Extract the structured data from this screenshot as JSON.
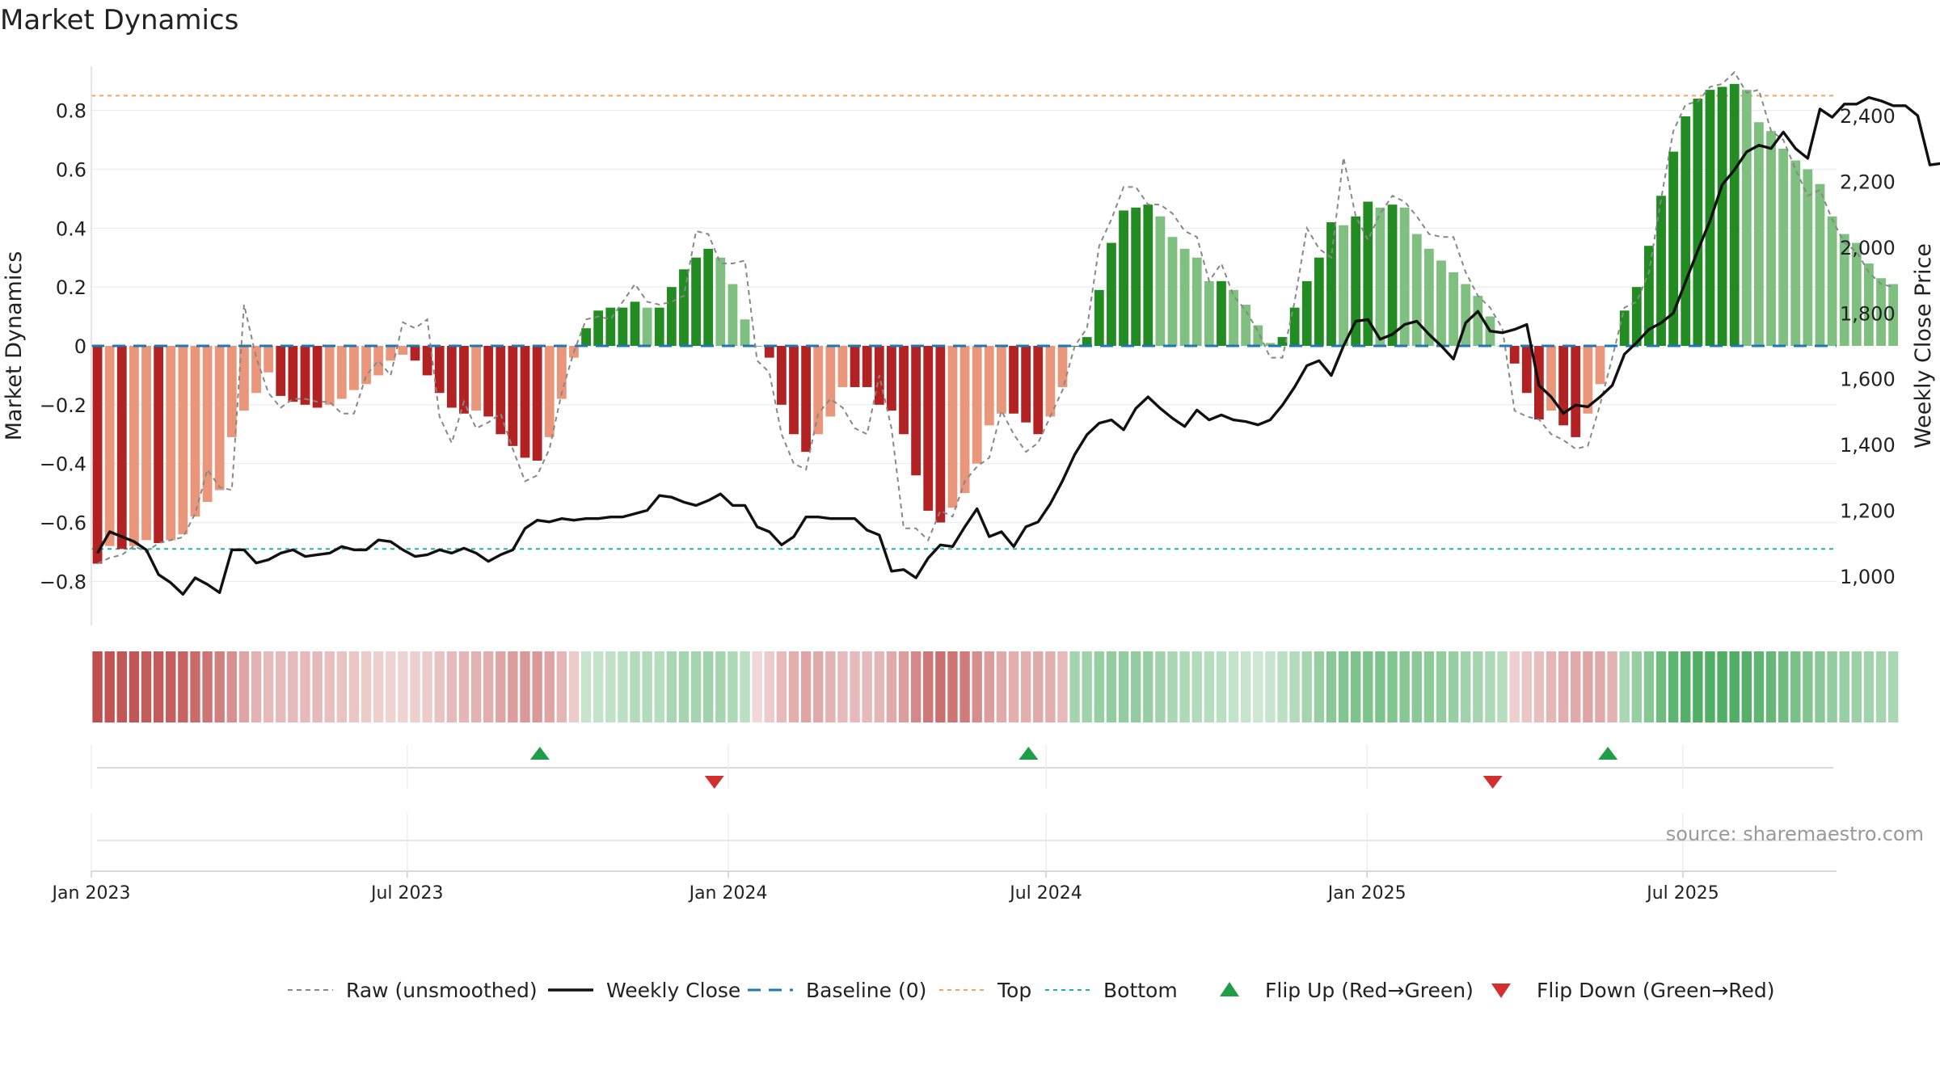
{
  "chart_data": {
    "type": "bar",
    "title": "Market Dynamics",
    "ylabel_left": "Market Dynamics",
    "ylabel_right": "Weekly Close Price",
    "source_note": "source: sharemaestro.com",
    "x_start": "2023-01-01",
    "x_end": "2025-09-27",
    "week_interval_days": 7,
    "ylim_left": [
      -0.95,
      0.95
    ],
    "ylim_right": [
      850,
      2550
    ],
    "y_ticks_left": [
      -0.8,
      -0.6,
      -0.4,
      -0.2,
      0,
      0.2,
      0.4,
      0.6,
      0.8
    ],
    "y_tick_labels_left": [
      "−0.8",
      "−0.6",
      "−0.4",
      "−0.2",
      "0",
      "0.2",
      "0.4",
      "0.6",
      "0.8"
    ],
    "y_ticks_right": [
      1000,
      1200,
      1400,
      1600,
      1800,
      2000,
      2200,
      2400
    ],
    "y_tick_labels_right": [
      "1,000",
      "1,200",
      "1,400",
      "1,600",
      "1,800",
      "2,000",
      "2,200",
      "2,400"
    ],
    "x_tick_dates": [
      "2023-01-01",
      "2023-07-01",
      "2024-01-01",
      "2024-07-01",
      "2025-01-01",
      "2025-07-01"
    ],
    "x_tick_labels": [
      "Jan 2023",
      "Jul 2023",
      "Jan 2024",
      "Jul 2024",
      "Jan 2025",
      "Jul 2025"
    ],
    "top_line": 0.85,
    "bottom_line": -0.69,
    "baseline": 0,
    "grid": true,
    "legend_position": "bottom-center",
    "colors": {
      "neg_strong": "#b22222",
      "neg_weak": "#e9967a",
      "pos_strong": "#228b22",
      "pos_weak": "#7fbf7f",
      "raw": "#888888",
      "close": "#111111",
      "baseline": "#1f77b4",
      "top": "#f4a460",
      "bottom": "#20b2aa",
      "flip_up": "#1e9e46",
      "flip_down": "#d32f2f"
    },
    "legend": [
      {
        "label": "Raw (unsmoothed)",
        "kind": "dash-gray"
      },
      {
        "label": "Weekly Close",
        "kind": "line-black"
      },
      {
        "label": "Baseline (0)",
        "kind": "dash-blue"
      },
      {
        "label": "Top",
        "kind": "dot-orange"
      },
      {
        "label": "Bottom",
        "kind": "dot-teal"
      },
      {
        "label": "Flip Up (Red→Green)",
        "kind": "tri-up"
      },
      {
        "label": "Flip Down (Green→Red)",
        "kind": "tri-down"
      }
    ],
    "series": [
      {
        "name": "Market Dynamics",
        "values": [
          -0.74,
          -0.68,
          -0.69,
          -0.68,
          -0.66,
          -0.67,
          -0.66,
          -0.64,
          -0.58,
          -0.53,
          -0.49,
          -0.31,
          -0.22,
          -0.16,
          -0.09,
          -0.17,
          -0.19,
          -0.2,
          -0.21,
          -0.2,
          -0.18,
          -0.15,
          -0.13,
          -0.1,
          -0.05,
          -0.03,
          -0.05,
          -0.1,
          -0.16,
          -0.21,
          -0.23,
          -0.22,
          -0.24,
          -0.3,
          -0.34,
          -0.38,
          -0.39,
          -0.31,
          -0.18,
          -0.04,
          0.06,
          0.12,
          0.13,
          0.13,
          0.15,
          0.13,
          0.13,
          0.2,
          0.26,
          0.3,
          0.33,
          0.3,
          0.21,
          0.09,
          0.0,
          -0.04,
          -0.2,
          -0.3,
          -0.36,
          -0.3,
          -0.24,
          -0.14,
          -0.14,
          -0.14,
          -0.2,
          -0.22,
          -0.3,
          -0.44,
          -0.56,
          -0.6,
          -0.55,
          -0.5,
          -0.4,
          -0.27,
          -0.23,
          -0.23,
          -0.26,
          -0.3,
          -0.24,
          -0.14,
          0.0,
          0.03,
          0.19,
          0.35,
          0.46,
          0.47,
          0.48,
          0.44,
          0.37,
          0.33,
          0.3,
          0.22,
          0.22,
          0.19,
          0.14,
          0.07,
          0.01,
          0.03,
          0.13,
          0.22,
          0.3,
          0.42,
          0.41,
          0.44,
          0.49,
          0.47,
          0.48,
          0.47,
          0.38,
          0.33,
          0.29,
          0.25,
          0.21,
          0.17,
          0.1,
          0.0,
          -0.06,
          -0.16,
          -0.25,
          -0.22,
          -0.27,
          -0.31,
          -0.23,
          -0.13,
          0.0,
          0.12,
          0.2,
          0.34,
          0.51,
          0.66,
          0.78,
          0.84,
          0.87,
          0.88,
          0.89,
          0.87,
          0.76,
          0.73,
          0.67,
          0.63,
          0.6,
          0.55,
          0.44,
          0.38,
          0.35,
          0.28,
          0.23,
          0.21
        ]
      },
      {
        "name": "Raw (unsmoothed)",
        "values": [
          -0.74,
          -0.72,
          -0.71,
          -0.68,
          -0.7,
          -0.67,
          -0.66,
          -0.65,
          -0.57,
          -0.42,
          -0.48,
          -0.49,
          0.14,
          -0.04,
          -0.16,
          -0.21,
          -0.18,
          -0.18,
          -0.19,
          -0.19,
          -0.23,
          -0.23,
          -0.1,
          -0.05,
          -0.1,
          0.08,
          0.06,
          0.09,
          -0.24,
          -0.33,
          -0.19,
          -0.28,
          -0.26,
          -0.23,
          -0.35,
          -0.46,
          -0.44,
          -0.35,
          -0.16,
          -0.02,
          0.09,
          0.1,
          0.09,
          0.15,
          0.21,
          0.15,
          0.14,
          0.15,
          0.17,
          0.39,
          0.38,
          0.28,
          0.28,
          0.29,
          -0.05,
          -0.09,
          -0.3,
          -0.4,
          -0.42,
          -0.23,
          -0.18,
          -0.21,
          -0.28,
          -0.3,
          -0.1,
          -0.28,
          -0.62,
          -0.62,
          -0.66,
          -0.56,
          -0.58,
          -0.46,
          -0.41,
          -0.38,
          -0.22,
          -0.3,
          -0.36,
          -0.33,
          -0.24,
          -0.15,
          0.0,
          0.06,
          0.34,
          0.43,
          0.54,
          0.54,
          0.48,
          0.48,
          0.45,
          0.39,
          0.37,
          0.22,
          0.28,
          0.17,
          0.12,
          0.05,
          -0.04,
          -0.04,
          0.15,
          0.4,
          0.33,
          0.3,
          0.64,
          0.44,
          0.36,
          0.45,
          0.51,
          0.49,
          0.44,
          0.38,
          0.37,
          0.37,
          0.25,
          0.17,
          0.13,
          0.06,
          -0.22,
          -0.24,
          -0.25,
          -0.3,
          -0.32,
          -0.35,
          -0.34,
          -0.2,
          -0.04,
          0.13,
          0.15,
          0.25,
          0.5,
          0.73,
          0.82,
          0.83,
          0.88,
          0.89,
          0.93,
          0.86,
          0.87,
          0.73,
          0.7,
          0.6,
          0.51,
          0.53,
          0.43,
          0.35,
          0.32,
          0.25,
          0.21,
          0.2
        ]
      },
      {
        "name": "Weekly Close",
        "values": [
          1070,
          1135,
          1120,
          1105,
          1080,
          1005,
          980,
          945,
          995,
          975,
          950,
          1080,
          1080,
          1040,
          1050,
          1070,
          1080,
          1060,
          1065,
          1070,
          1090,
          1080,
          1080,
          1110,
          1105,
          1080,
          1060,
          1065,
          1080,
          1070,
          1085,
          1070,
          1045,
          1065,
          1080,
          1145,
          1170,
          1165,
          1175,
          1170,
          1175,
          1175,
          1180,
          1180,
          1190,
          1200,
          1245,
          1240,
          1225,
          1215,
          1230,
          1250,
          1215,
          1215,
          1150,
          1135,
          1095,
          1120,
          1180,
          1180,
          1175,
          1175,
          1175,
          1140,
          1125,
          1015,
          1020,
          995,
          1055,
          1095,
          1090,
          1150,
          1205,
          1120,
          1135,
          1090,
          1150,
          1165,
          1220,
          1290,
          1370,
          1430,
          1465,
          1475,
          1445,
          1510,
          1545,
          1510,
          1480,
          1455,
          1505,
          1475,
          1490,
          1475,
          1470,
          1460,
          1475,
          1520,
          1575,
          1640,
          1655,
          1610,
          1700,
          1775,
          1780,
          1720,
          1735,
          1765,
          1775,
          1735,
          1700,
          1660,
          1770,
          1805,
          1745,
          1740,
          1750,
          1765,
          1580,
          1545,
          1495,
          1520,
          1515,
          1545,
          1580,
          1675,
          1710,
          1750,
          1770,
          1800,
          1895,
          1990,
          2080,
          2190,
          2235,
          2290,
          2310,
          2300,
          2350,
          2300,
          2270,
          2420,
          2395,
          2435,
          2435,
          2455,
          2445,
          2430,
          2430,
          2400,
          2250,
          2255,
          2290
        ]
      }
    ],
    "state_strip": [
      -0.72,
      -0.7,
      -0.68,
      -0.68,
      -0.66,
      -0.66,
      -0.64,
      -0.62,
      -0.58,
      -0.54,
      -0.48,
      -0.4,
      -0.3,
      -0.24,
      -0.2,
      -0.2,
      -0.2,
      -0.2,
      -0.2,
      -0.18,
      -0.16,
      -0.14,
      -0.12,
      -0.1,
      -0.08,
      -0.08,
      -0.1,
      -0.12,
      -0.16,
      -0.2,
      -0.22,
      -0.24,
      -0.26,
      -0.3,
      -0.34,
      -0.36,
      -0.36,
      -0.3,
      -0.22,
      -0.12,
      0.12,
      0.14,
      0.16,
      0.18,
      0.22,
      0.22,
      0.2,
      0.26,
      0.28,
      0.28,
      0.3,
      0.28,
      0.24,
      0.18,
      -0.06,
      -0.12,
      -0.2,
      -0.26,
      -0.3,
      -0.28,
      -0.24,
      -0.2,
      -0.2,
      -0.2,
      -0.22,
      -0.28,
      -0.34,
      -0.44,
      -0.52,
      -0.56,
      -0.54,
      -0.5,
      -0.42,
      -0.34,
      -0.28,
      -0.26,
      -0.26,
      -0.28,
      -0.26,
      -0.2,
      0.28,
      0.3,
      0.34,
      0.36,
      0.36,
      0.36,
      0.34,
      0.3,
      0.26,
      0.24,
      0.22,
      0.2,
      0.18,
      0.14,
      0.12,
      0.1,
      0.12,
      0.18,
      0.22,
      0.28,
      0.34,
      0.4,
      0.44,
      0.46,
      0.46,
      0.46,
      0.44,
      0.42,
      0.4,
      0.38,
      0.36,
      0.34,
      0.3,
      0.28,
      0.24,
      0.2,
      -0.1,
      -0.14,
      -0.18,
      -0.22,
      -0.26,
      -0.28,
      -0.3,
      -0.28,
      -0.24,
      0.26,
      0.34,
      0.42,
      0.52,
      0.6,
      0.64,
      0.66,
      0.66,
      0.66,
      0.66,
      0.64,
      0.6,
      0.56,
      0.52,
      0.48,
      0.44,
      0.4,
      0.36,
      0.34,
      0.32,
      0.3,
      0.28,
      0.26
    ],
    "flip_markers": [
      {
        "date": "2023-09-15",
        "kind": "up"
      },
      {
        "date": "2023-12-24",
        "kind": "down"
      },
      {
        "date": "2024-06-21",
        "kind": "up"
      },
      {
        "date": "2025-03-14",
        "kind": "down"
      },
      {
        "date": "2025-05-19",
        "kind": "up"
      }
    ]
  }
}
